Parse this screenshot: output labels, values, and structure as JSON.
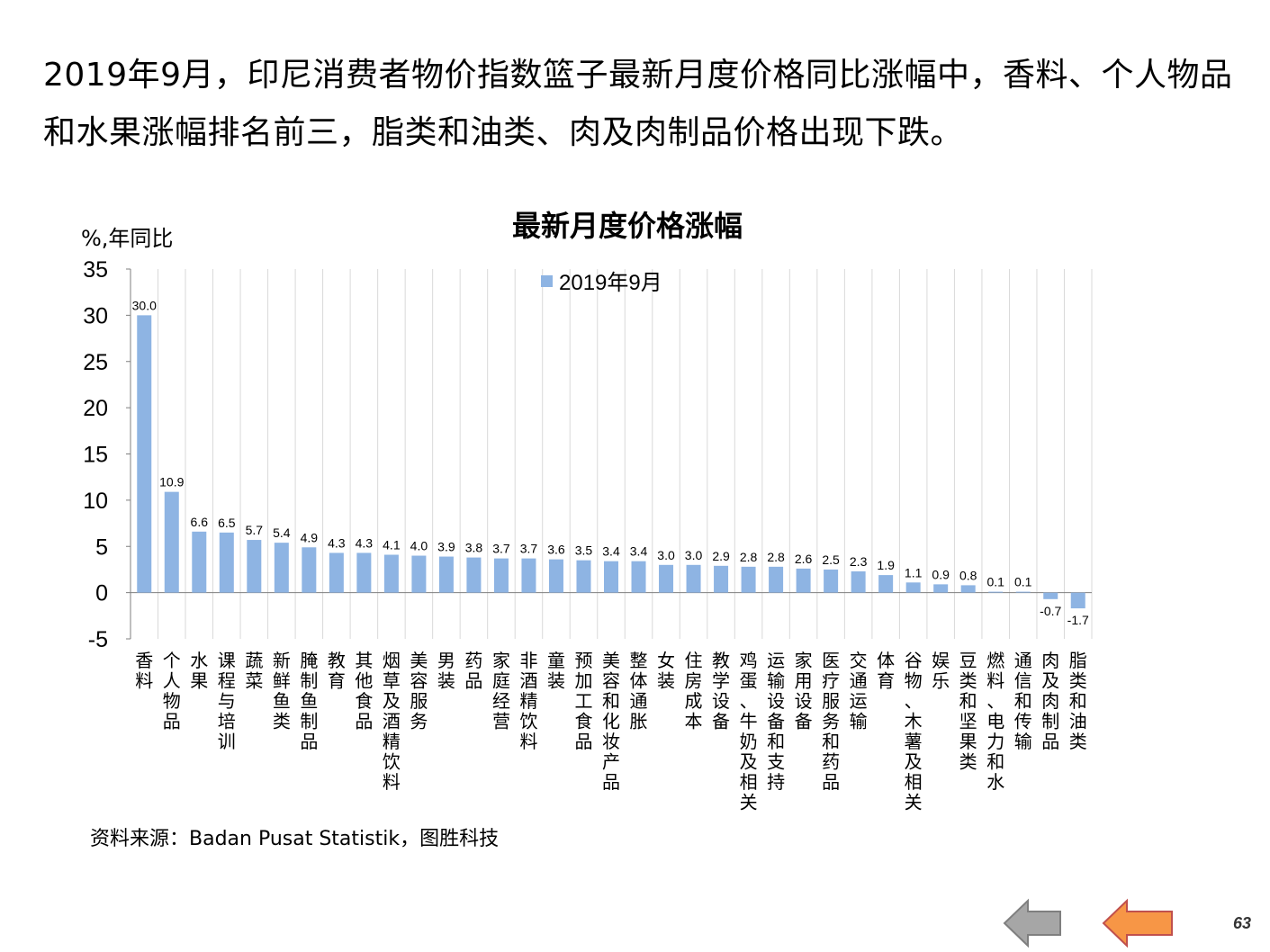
{
  "heading": "2019年9月，印尼消费者物价指数篮子最新月度价格同比涨幅中，香料、个人物品和水果涨幅排名前三，脂类和油类、肉及肉制品价格出现下跌。",
  "source": "资料来源：Badan Pusat Statistik，图胜科技",
  "page_number": "63",
  "nav": {
    "prev": "previous-page",
    "next": "next-page"
  },
  "colors": {
    "bar": "#8eb4e3",
    "grid": "#d9d9d9",
    "axis": "#7f7f7f",
    "prev_arrow": "#a6a6a6",
    "next_arrow": "#f79646"
  },
  "chart_data": {
    "type": "bar",
    "title": "最新月度价格涨幅",
    "ylabel": "%,年同比",
    "xlabel": "",
    "ylim": [
      -5,
      35
    ],
    "yticks": [
      35,
      30,
      25,
      20,
      15,
      10,
      5,
      0,
      -5
    ],
    "grid": "vertical",
    "legend": "top-center",
    "series": [
      {
        "name": "2019年9月",
        "values": [
          30.0,
          10.9,
          6.6,
          6.5,
          5.7,
          5.4,
          4.9,
          4.3,
          4.3,
          4.1,
          4.0,
          3.9,
          3.8,
          3.7,
          3.7,
          3.6,
          3.5,
          3.4,
          3.4,
          3.0,
          3.0,
          2.9,
          2.8,
          2.8,
          2.6,
          2.5,
          2.3,
          1.9,
          1.1,
          0.9,
          0.8,
          0.1,
          0.1,
          -0.7,
          -1.7
        ],
        "labels": [
          "30.0",
          "10.9",
          "6.6",
          "6.5",
          "5.7",
          "5.4",
          "4.9",
          "4.3",
          "4.3",
          "4.1",
          "4.0",
          "3.9",
          "3.8",
          "3.7",
          "3.7",
          "3.6",
          "3.5",
          "3.4",
          "3.4",
          "3.0",
          "3.0",
          "2.9",
          "2.8",
          "2.8",
          "2.6",
          "2.5",
          "2.3",
          "1.9",
          "1.1",
          "0.9",
          "0.8",
          "0.1",
          "0.1",
          "-0.7",
          "-1.7"
        ]
      }
    ],
    "categories": [
      "香料",
      "个人物品",
      "水果",
      "课程与培训",
      "蔬菜",
      "新鲜鱼类",
      "腌制鱼制品",
      "教育",
      "其他食品",
      "烟草及酒精饮料",
      "美容服务",
      "男装",
      "药品",
      "家庭经营",
      "非酒精饮料",
      "童装",
      "预加工食品",
      "美容和化妆产品",
      "整体通胀",
      "女装",
      "住房成本",
      "教学设备",
      "鸡蛋、牛奶及相关",
      "运输设备和支持",
      "家用设备",
      "医疗服务和药品",
      "交通运输",
      "体育",
      "谷物、木薯及相关",
      "娱乐",
      "豆类和坚果类",
      "燃料、电力和水",
      "通信和传输",
      "肉及肉制品",
      "脂类和油类"
    ]
  }
}
